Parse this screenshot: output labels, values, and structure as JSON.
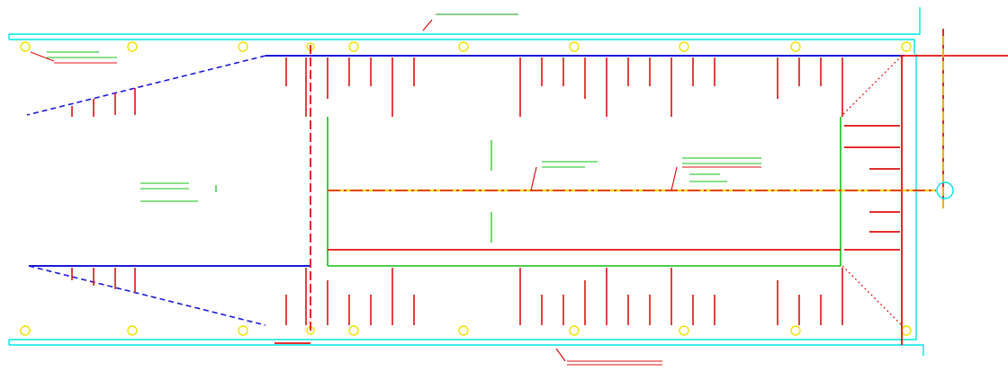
{
  "colors": {
    "background": "#ffffff",
    "boundary": "#00e5e5",
    "structure": "#1a1adc",
    "dimension": "#e01010",
    "centerline": "#f0e000",
    "slab": "#12c012",
    "column_marker": "#f0e000",
    "leader_text": "#1aa01a"
  },
  "labels": {
    "top_note": "",
    "bottom_note": "",
    "total_dim": "",
    "dim_left": "",
    "left_block": "",
    "center_block": "",
    "right_block": ""
  }
}
